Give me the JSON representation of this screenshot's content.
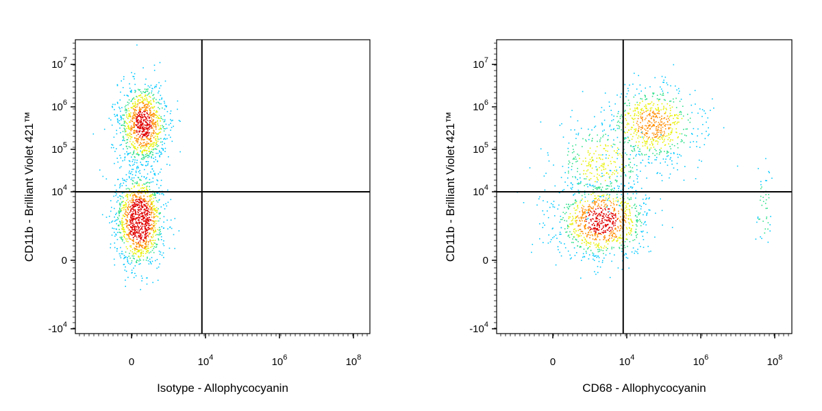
{
  "chart_data": [
    {
      "type": "scatter",
      "style": "density dot plot with quadrant gates",
      "xlabel": "Isotype - Allophycocyanin",
      "ylabel": "CD11b - Brilliant Violet 421™",
      "x_ticks": [
        {
          "value": 0,
          "base": "0",
          "exp": ""
        },
        {
          "value": 10000,
          "base": "10",
          "exp": "4"
        },
        {
          "value": 1000000,
          "base": "10",
          "exp": "6"
        },
        {
          "value": 100000000,
          "base": "10",
          "exp": "8"
        }
      ],
      "y_ticks": [
        {
          "value": -10000,
          "base": "-10",
          "exp": "4"
        },
        {
          "value": 0,
          "base": "0",
          "exp": ""
        },
        {
          "value": 10000,
          "base": "10",
          "exp": "4"
        },
        {
          "value": 100000,
          "base": "10",
          "exp": "5"
        },
        {
          "value": 1000000,
          "base": "10",
          "exp": "6"
        },
        {
          "value": 10000000,
          "base": "10",
          "exp": "7"
        }
      ],
      "quadrant_gate": {
        "x": 8000,
        "y": 10000
      },
      "populations": [
        {
          "name": "",
          "x_center": 300,
          "y_center": 400000,
          "relative_size": 0.45
        },
        {
          "name": "",
          "x_center": 200,
          "y_center": 1500,
          "relative_size": 0.55
        }
      ]
    },
    {
      "type": "scatter",
      "style": "density dot plot with quadrant gates",
      "xlabel": "CD68 - Allophycocyanin",
      "ylabel": "CD11b - Brilliant Violet 421™",
      "x_ticks": [
        {
          "value": 0,
          "base": "0",
          "exp": ""
        },
        {
          "value": 10000,
          "base": "10",
          "exp": "4"
        },
        {
          "value": 1000000,
          "base": "10",
          "exp": "6"
        },
        {
          "value": 100000000,
          "base": "10",
          "exp": "8"
        }
      ],
      "y_ticks": [
        {
          "value": -10000,
          "base": "-10",
          "exp": "4"
        },
        {
          "value": 0,
          "base": "0",
          "exp": ""
        },
        {
          "value": 10000,
          "base": "10",
          "exp": "4"
        },
        {
          "value": 100000,
          "base": "10",
          "exp": "5"
        },
        {
          "value": 1000000,
          "base": "10",
          "exp": "6"
        },
        {
          "value": 10000000,
          "base": "10",
          "exp": "7"
        }
      ],
      "quadrant_gate": {
        "x": 8000,
        "y": 10000
      },
      "populations": [
        {
          "name": "",
          "x_center": 50000,
          "y_center": 400000,
          "relative_size": 0.3
        },
        {
          "name": "",
          "x_center": 2000,
          "y_center": 1500,
          "relative_size": 0.45
        },
        {
          "name": "",
          "x_center": 2000,
          "y_center": 50000,
          "relative_size": 0.15
        },
        {
          "name": "",
          "x_center": 50000000,
          "y_center": 3000,
          "relative_size": 0.02
        }
      ]
    }
  ]
}
